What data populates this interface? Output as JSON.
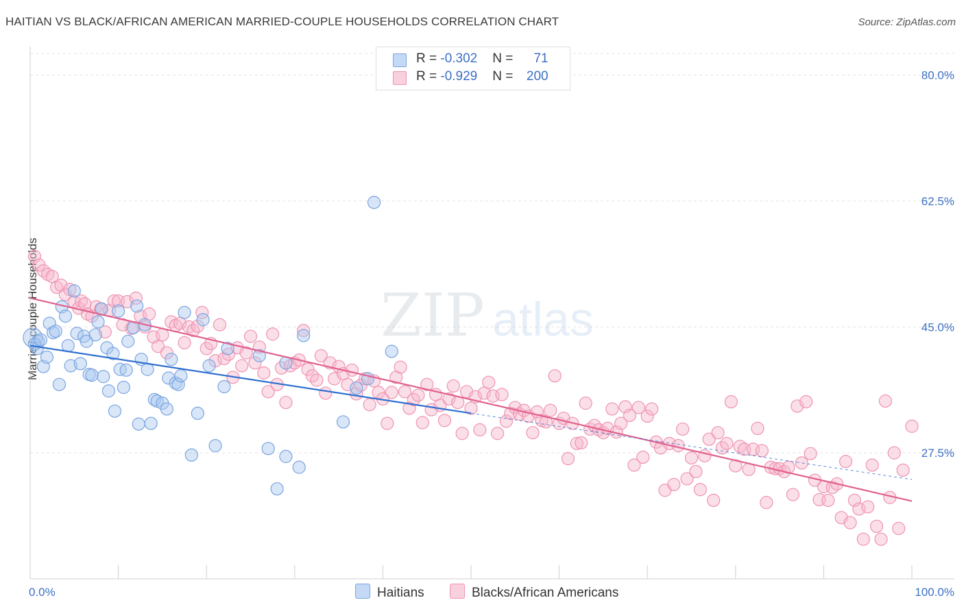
{
  "title": "HAITIAN VS BLACK/AFRICAN AMERICAN MARRIED-COUPLE HOUSEHOLDS CORRELATION CHART",
  "source": "Source: ZipAtlas.com",
  "watermark": {
    "zip": "ZIP",
    "atlas": "atlas"
  },
  "legend_top": {
    "rows": [
      {
        "r_label": "R = ",
        "r_value": "-0.302",
        "n_label": "N = ",
        "n_value": "71",
        "color": "#a8c8f0"
      },
      {
        "r_label": "R = ",
        "r_value": "-0.929",
        "n_label": "N = ",
        "n_value": "200",
        "color": "#f6b8cc"
      }
    ]
  },
  "chart_data": {
    "type": "scatter",
    "title": "HAITIAN VS BLACK/AFRICAN AMERICAN MARRIED-COUPLE HOUSEHOLDS CORRELATION CHART",
    "xlabel": "",
    "ylabel": "Married-couple Households",
    "xlim": [
      0,
      100
    ],
    "ylim": [
      10,
      83
    ],
    "x_tick_labels": [
      "0.0%",
      "100.0%"
    ],
    "y_ticks": [
      27.5,
      45.0,
      62.5,
      80.0
    ],
    "y_tick_labels": [
      "27.5%",
      "45.0%",
      "62.5%",
      "80.0%"
    ],
    "grid": true,
    "legend_position": "bottom",
    "series": [
      {
        "name": "Haitians",
        "color": "#7ba4e0",
        "fill": "#a8c8f0",
        "line_color": "#2f6fd0",
        "trend": {
          "x": [
            0,
            50
          ],
          "y": [
            42.4,
            33.0
          ]
        },
        "trend_dashed": {
          "x": [
            50,
            100
          ],
          "y": [
            33.0,
            23.8
          ]
        },
        "points": [
          [
            0.3,
            43.5
          ],
          [
            0.9,
            43.0
          ],
          [
            0.8,
            42.0
          ],
          [
            1.5,
            39.5
          ],
          [
            1.9,
            40.8
          ],
          [
            2.2,
            45.5
          ],
          [
            2.6,
            44.2
          ],
          [
            2.9,
            44.4
          ],
          [
            3.3,
            37.0
          ],
          [
            3.6,
            47.8
          ],
          [
            4.0,
            46.5
          ],
          [
            4.3,
            42.4
          ],
          [
            4.6,
            39.6
          ],
          [
            5.0,
            50.0
          ],
          [
            5.3,
            44.1
          ],
          [
            5.7,
            39.9
          ],
          [
            6.1,
            43.7
          ],
          [
            6.4,
            43.0
          ],
          [
            6.7,
            38.4
          ],
          [
            7.0,
            38.3
          ],
          [
            7.4,
            43.9
          ],
          [
            7.7,
            45.7
          ],
          [
            8.1,
            47.5
          ],
          [
            8.3,
            38.1
          ],
          [
            8.7,
            42.1
          ],
          [
            8.9,
            36.1
          ],
          [
            9.4,
            41.3
          ],
          [
            9.6,
            33.3
          ],
          [
            10.0,
            47.2
          ],
          [
            10.2,
            39.1
          ],
          [
            10.6,
            36.6
          ],
          [
            10.9,
            39.0
          ],
          [
            11.1,
            43.0
          ],
          [
            11.7,
            44.9
          ],
          [
            12.1,
            47.9
          ],
          [
            12.3,
            31.5
          ],
          [
            12.6,
            40.5
          ],
          [
            13.0,
            45.3
          ],
          [
            13.3,
            39.1
          ],
          [
            13.7,
            31.6
          ],
          [
            14.1,
            34.9
          ],
          [
            14.4,
            34.7
          ],
          [
            15.0,
            34.4
          ],
          [
            15.5,
            33.6
          ],
          [
            15.7,
            37.9
          ],
          [
            16.0,
            40.5
          ],
          [
            16.5,
            37.2
          ],
          [
            16.8,
            37.0
          ],
          [
            17.1,
            38.2
          ],
          [
            17.5,
            47.0
          ],
          [
            18.3,
            27.2
          ],
          [
            19.0,
            33.0
          ],
          [
            19.6,
            46.0
          ],
          [
            20.3,
            39.6
          ],
          [
            21.0,
            28.5
          ],
          [
            22.0,
            36.7
          ],
          [
            22.4,
            42.0
          ],
          [
            26.0,
            41.0
          ],
          [
            27.0,
            28.1
          ],
          [
            28.0,
            22.5
          ],
          [
            29.0,
            40.0
          ],
          [
            29.0,
            27.0
          ],
          [
            30.5,
            25.5
          ],
          [
            31.0,
            43.8
          ],
          [
            35.5,
            31.8
          ],
          [
            37.0,
            36.5
          ],
          [
            38.3,
            37.8
          ],
          [
            39.0,
            62.3
          ],
          [
            41.0,
            41.6
          ],
          [
            0.5,
            42.6
          ],
          [
            1.2,
            43.2
          ]
        ]
      },
      {
        "name": "Blacks/African Americans",
        "color": "#ee93b1",
        "fill": "#f6b8cc",
        "line_color": "#e0608e",
        "trend": {
          "x": [
            0,
            100
          ],
          "y": [
            49.0,
            20.8
          ]
        },
        "points": [
          [
            0.5,
            54.8
          ],
          [
            1.0,
            53.6
          ],
          [
            1.5,
            52.8
          ],
          [
            2.0,
            52.3
          ],
          [
            2.5,
            52.0
          ],
          [
            3.0,
            50.5
          ],
          [
            3.5,
            50.8
          ],
          [
            4.0,
            49.5
          ],
          [
            4.5,
            50.2
          ],
          [
            5.0,
            48.5
          ],
          [
            5.5,
            47.6
          ],
          [
            5.8,
            48.6
          ],
          [
            6.2,
            48.2
          ],
          [
            6.5,
            46.8
          ],
          [
            7.0,
            46.5
          ],
          [
            7.5,
            47.8
          ],
          [
            8.0,
            47.5
          ],
          [
            8.5,
            44.3
          ],
          [
            9.0,
            47.3
          ],
          [
            9.5,
            48.6
          ],
          [
            10.0,
            48.6
          ],
          [
            10.5,
            45.3
          ],
          [
            11.0,
            48.5
          ],
          [
            11.5,
            44.8
          ],
          [
            12.0,
            49.0
          ],
          [
            12.5,
            46.5
          ],
          [
            13.0,
            45.0
          ],
          [
            13.5,
            46.8
          ],
          [
            14.0,
            43.6
          ],
          [
            14.5,
            42.3
          ],
          [
            15.0,
            43.9
          ],
          [
            15.5,
            41.4
          ],
          [
            16.0,
            45.7
          ],
          [
            16.5,
            45.2
          ],
          [
            17.0,
            45.5
          ],
          [
            17.5,
            42.8
          ],
          [
            18.0,
            45.0
          ],
          [
            18.5,
            44.5
          ],
          [
            19.0,
            45.1
          ],
          [
            19.5,
            47.0
          ],
          [
            20.0,
            42.0
          ],
          [
            20.5,
            42.7
          ],
          [
            21.0,
            40.3
          ],
          [
            21.5,
            45.3
          ],
          [
            22.0,
            40.6
          ],
          [
            22.5,
            41.2
          ],
          [
            23.0,
            38.0
          ],
          [
            23.5,
            42.1
          ],
          [
            24.0,
            39.6
          ],
          [
            24.5,
            41.4
          ],
          [
            25.0,
            43.7
          ],
          [
            25.5,
            40.0
          ],
          [
            26.0,
            42.2
          ],
          [
            26.5,
            38.6
          ],
          [
            27.0,
            36.0
          ],
          [
            27.5,
            44.0
          ],
          [
            28.0,
            37.0
          ],
          [
            28.5,
            39.3
          ],
          [
            29.0,
            34.5
          ],
          [
            29.5,
            39.6
          ],
          [
            30.0,
            40.0
          ],
          [
            30.5,
            40.4
          ],
          [
            31.0,
            44.5
          ],
          [
            31.5,
            39.1
          ],
          [
            32.0,
            38.2
          ],
          [
            32.5,
            37.6
          ],
          [
            33.0,
            41.0
          ],
          [
            33.5,
            35.8
          ],
          [
            34.0,
            40.0
          ],
          [
            34.5,
            37.8
          ],
          [
            35.0,
            39.5
          ],
          [
            35.5,
            38.5
          ],
          [
            36.0,
            37.0
          ],
          [
            36.5,
            39.0
          ],
          [
            37.0,
            35.7
          ],
          [
            37.5,
            36.9
          ],
          [
            38.0,
            37.8
          ],
          [
            38.5,
            34.2
          ],
          [
            39.0,
            37.5
          ],
          [
            39.5,
            35.9
          ],
          [
            40.0,
            35.0
          ],
          [
            40.5,
            31.6
          ],
          [
            41.0,
            35.9
          ],
          [
            41.5,
            38.0
          ],
          [
            42.0,
            39.4
          ],
          [
            42.5,
            36.0
          ],
          [
            43.0,
            33.7
          ],
          [
            43.5,
            34.9
          ],
          [
            44.0,
            35.5
          ],
          [
            44.5,
            31.7
          ],
          [
            45.0,
            37.0
          ],
          [
            45.5,
            33.5
          ],
          [
            46.0,
            35.6
          ],
          [
            46.5,
            34.1
          ],
          [
            47.0,
            32.0
          ],
          [
            47.5,
            35.0
          ],
          [
            48.0,
            36.8
          ],
          [
            48.5,
            34.5
          ],
          [
            49.0,
            30.2
          ],
          [
            49.5,
            36.0
          ],
          [
            50.0,
            33.7
          ],
          [
            50.5,
            35.3
          ],
          [
            51.0,
            30.7
          ],
          [
            51.5,
            35.8
          ],
          [
            52.0,
            37.3
          ],
          [
            52.5,
            35.4
          ],
          [
            53.0,
            30.2
          ],
          [
            53.5,
            35.6
          ],
          [
            54.0,
            31.9
          ],
          [
            54.5,
            33.0
          ],
          [
            55.0,
            33.8
          ],
          [
            55.5,
            32.9
          ],
          [
            56.0,
            33.4
          ],
          [
            56.5,
            32.6
          ],
          [
            57.0,
            30.3
          ],
          [
            57.5,
            33.2
          ],
          [
            58.0,
            32.0
          ],
          [
            58.5,
            31.8
          ],
          [
            59.0,
            33.4
          ],
          [
            59.5,
            38.2
          ],
          [
            60.0,
            31.6
          ],
          [
            60.5,
            32.3
          ],
          [
            61.0,
            26.7
          ],
          [
            61.5,
            31.6
          ],
          [
            62.0,
            28.8
          ],
          [
            62.5,
            28.9
          ],
          [
            63.0,
            34.4
          ],
          [
            63.5,
            30.8
          ],
          [
            64.0,
            31.3
          ],
          [
            64.5,
            30.7
          ],
          [
            65.0,
            30.3
          ],
          [
            65.5,
            30.9
          ],
          [
            66.0,
            33.6
          ],
          [
            66.5,
            30.4
          ],
          [
            67.0,
            31.6
          ],
          [
            67.5,
            33.9
          ],
          [
            68.0,
            32.7
          ],
          [
            68.5,
            25.8
          ],
          [
            69.0,
            33.8
          ],
          [
            69.5,
            26.9
          ],
          [
            70.0,
            32.6
          ],
          [
            70.5,
            33.6
          ],
          [
            71.0,
            29.0
          ],
          [
            71.5,
            28.2
          ],
          [
            72.0,
            22.3
          ],
          [
            72.5,
            28.8
          ],
          [
            73.0,
            23.1
          ],
          [
            73.5,
            28.5
          ],
          [
            74.0,
            30.8
          ],
          [
            74.5,
            23.9
          ],
          [
            75.0,
            26.8
          ],
          [
            75.5,
            24.9
          ],
          [
            76.0,
            22.4
          ],
          [
            76.5,
            27.1
          ],
          [
            77.0,
            29.4
          ],
          [
            77.5,
            20.9
          ],
          [
            78.0,
            30.3
          ],
          [
            78.5,
            28.2
          ],
          [
            79.0,
            28.8
          ],
          [
            79.5,
            34.6
          ],
          [
            80.0,
            25.7
          ],
          [
            80.5,
            28.4
          ],
          [
            81.0,
            28.0
          ],
          [
            81.5,
            25.2
          ],
          [
            82.0,
            28.0
          ],
          [
            82.5,
            30.9
          ],
          [
            83.0,
            27.8
          ],
          [
            83.5,
            20.6
          ],
          [
            84.0,
            25.5
          ],
          [
            84.5,
            25.3
          ],
          [
            85.0,
            25.3
          ],
          [
            85.5,
            24.9
          ],
          [
            86.0,
            25.5
          ],
          [
            86.5,
            21.7
          ],
          [
            87.0,
            34.0
          ],
          [
            87.5,
            26.1
          ],
          [
            88.0,
            34.6
          ],
          [
            88.5,
            27.4
          ],
          [
            89.0,
            23.7
          ],
          [
            89.5,
            21.0
          ],
          [
            90.0,
            22.8
          ],
          [
            90.5,
            20.9
          ],
          [
            91.0,
            22.7
          ],
          [
            91.5,
            23.2
          ],
          [
            92.0,
            18.5
          ],
          [
            92.5,
            26.3
          ],
          [
            93.0,
            17.8
          ],
          [
            93.5,
            20.9
          ],
          [
            94.0,
            19.7
          ],
          [
            94.5,
            15.5
          ],
          [
            95.0,
            20.0
          ],
          [
            95.5,
            25.8
          ],
          [
            96.0,
            17.3
          ],
          [
            96.5,
            15.5
          ],
          [
            97.0,
            34.7
          ],
          [
            97.5,
            21.3
          ],
          [
            98.0,
            27.5
          ],
          [
            98.5,
            17.0
          ],
          [
            99.0,
            25.1
          ],
          [
            100.0,
            31.2
          ]
        ]
      }
    ]
  }
}
